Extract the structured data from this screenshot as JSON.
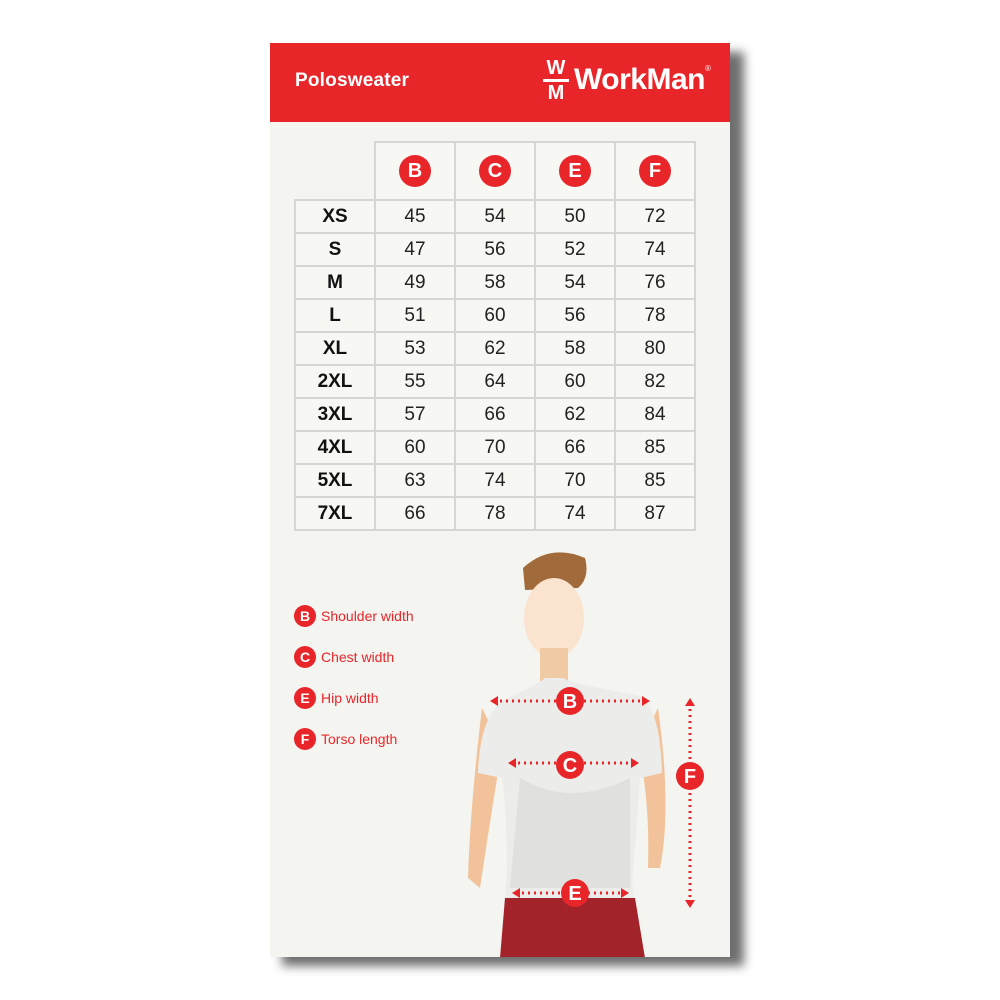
{
  "header": {
    "product": "Polosweater",
    "brand": "WorkMan",
    "logo_mark": "WM",
    "registered": "®"
  },
  "colors": {
    "accent": "#e8262a"
  },
  "table": {
    "columns": [
      "B",
      "C",
      "E",
      "F"
    ],
    "rows": [
      {
        "size": "XS",
        "values": [
          "45",
          "54",
          "50",
          "72"
        ]
      },
      {
        "size": "S",
        "values": [
          "47",
          "56",
          "52",
          "74"
        ]
      },
      {
        "size": "M",
        "values": [
          "49",
          "58",
          "54",
          "76"
        ]
      },
      {
        "size": "L",
        "values": [
          "51",
          "60",
          "56",
          "78"
        ]
      },
      {
        "size": "XL",
        "values": [
          "53",
          "62",
          "58",
          "80"
        ]
      },
      {
        "size": "2XL",
        "values": [
          "55",
          "64",
          "60",
          "82"
        ]
      },
      {
        "size": "3XL",
        "values": [
          "57",
          "66",
          "62",
          "84"
        ]
      },
      {
        "size": "4XL",
        "values": [
          "60",
          "70",
          "66",
          "85"
        ]
      },
      {
        "size": "5XL",
        "values": [
          "63",
          "74",
          "70",
          "85"
        ]
      },
      {
        "size": "7XL",
        "values": [
          "66",
          "78",
          "74",
          "87"
        ]
      }
    ]
  },
  "legend": [
    {
      "key": "B",
      "label": "Shoulder width"
    },
    {
      "key": "C",
      "label": "Chest width"
    },
    {
      "key": "E",
      "label": "Hip width"
    },
    {
      "key": "F",
      "label": "Torso length"
    }
  ]
}
